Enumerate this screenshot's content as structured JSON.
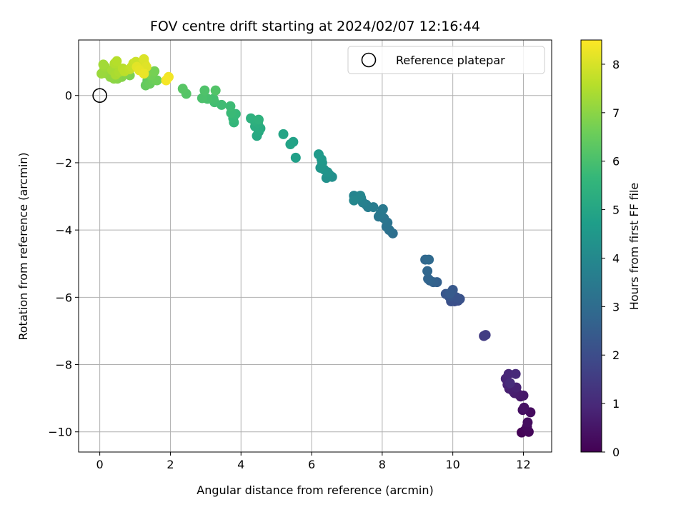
{
  "chart_data": {
    "type": "scatter",
    "title": "FOV centre drift starting at 2024/02/07 12:16:44",
    "xlabel": "Angular distance from reference (arcmin)",
    "ylabel": "Rotation from reference (arcmin)",
    "xlim": [
      -0.6,
      12.8
    ],
    "ylim": [
      -10.6,
      1.65
    ],
    "xticks": [
      0,
      2,
      4,
      6,
      8,
      10,
      12
    ],
    "yticks": [
      0,
      -2,
      -4,
      -6,
      -8,
      -10
    ],
    "xtick_labels": [
      "0",
      "2",
      "4",
      "6",
      "8",
      "10",
      "12"
    ],
    "ytick_labels": [
      "0",
      "−2",
      "−4",
      "−6",
      "−8",
      "−10"
    ],
    "grid": true,
    "legend": {
      "position": "top-right",
      "entries": [
        {
          "label": "Reference platepar",
          "marker": "open-circle"
        }
      ]
    },
    "reference_point": {
      "x": 0,
      "y": 0
    },
    "colorbar": {
      "label": "Hours from first FF file",
      "range": [
        0,
        8.5
      ],
      "ticks": [
        0,
        1,
        2,
        3,
        4,
        5,
        6,
        7,
        8
      ],
      "tick_labels": [
        "0",
        "1",
        "2",
        "3",
        "4",
        "5",
        "6",
        "7",
        "8"
      ],
      "colormap": "viridis"
    },
    "colormap_stops": [
      "#440154",
      "#482878",
      "#3e4989",
      "#31688e",
      "#26828e",
      "#1f9e89",
      "#35b779",
      "#6ece58",
      "#b5de2b",
      "#fde725"
    ],
    "points": [
      [
        11.95,
        -10.02,
        0.05
      ],
      [
        12.05,
        -9.95,
        0.1
      ],
      [
        12.15,
        -10.0,
        0.15
      ],
      [
        12.1,
        -9.85,
        0.2
      ],
      [
        12.2,
        -9.42,
        0.25
      ],
      [
        12.12,
        -9.72,
        0.3
      ],
      [
        11.98,
        -9.35,
        0.35
      ],
      [
        12.02,
        -9.28,
        0.4
      ],
      [
        11.92,
        -8.95,
        0.5
      ],
      [
        12.0,
        -8.92,
        0.55
      ],
      [
        11.85,
        -8.88,
        0.6
      ],
      [
        11.75,
        -8.85,
        0.65
      ],
      [
        11.7,
        -8.78,
        0.7
      ],
      [
        11.6,
        -8.72,
        0.75
      ],
      [
        11.8,
        -8.68,
        0.8
      ],
      [
        11.55,
        -8.6,
        0.85
      ],
      [
        11.5,
        -8.42,
        0.9
      ],
      [
        11.58,
        -8.28,
        0.95
      ],
      [
        11.78,
        -8.28,
        1.0
      ],
      [
        11.62,
        -8.55,
        1.05
      ],
      [
        10.88,
        -7.15,
        1.5
      ],
      [
        10.93,
        -7.12,
        1.55
      ],
      [
        10.05,
        -6.12,
        2.0
      ],
      [
        10.15,
        -6.1,
        2.05
      ],
      [
        9.95,
        -6.12,
        2.1
      ],
      [
        10.2,
        -6.05,
        2.15
      ],
      [
        10.1,
        -6.0,
        2.2
      ],
      [
        9.9,
        -5.98,
        2.25
      ],
      [
        9.8,
        -5.9,
        2.3
      ],
      [
        10.0,
        -5.78,
        2.35
      ],
      [
        9.92,
        -5.88,
        2.4
      ],
      [
        9.55,
        -5.55,
        2.6
      ],
      [
        9.45,
        -5.55,
        2.65
      ],
      [
        9.35,
        -5.5,
        2.7
      ],
      [
        9.3,
        -5.45,
        2.75
      ],
      [
        9.28,
        -5.22,
        2.8
      ],
      [
        9.22,
        -4.88,
        2.85
      ],
      [
        9.32,
        -4.88,
        2.9
      ],
      [
        8.3,
        -4.1,
        3.1
      ],
      [
        8.2,
        -4.0,
        3.15
      ],
      [
        8.12,
        -3.9,
        3.2
      ],
      [
        8.15,
        -3.78,
        3.25
      ],
      [
        8.05,
        -3.65,
        3.3
      ],
      [
        7.9,
        -3.6,
        3.35
      ],
      [
        7.95,
        -3.52,
        3.4
      ],
      [
        8.02,
        -3.38,
        3.45
      ],
      [
        7.75,
        -3.32,
        3.55
      ],
      [
        7.6,
        -3.32,
        3.6
      ],
      [
        7.55,
        -3.25,
        3.65
      ],
      [
        7.45,
        -3.18,
        3.7
      ],
      [
        7.4,
        -3.05,
        3.75
      ],
      [
        7.3,
        -3.02,
        3.8
      ],
      [
        7.2,
        -2.98,
        3.85
      ],
      [
        7.38,
        -2.98,
        3.9
      ],
      [
        7.2,
        -3.12,
        3.95
      ],
      [
        6.58,
        -2.42,
        4.2
      ],
      [
        6.5,
        -2.35,
        4.25
      ],
      [
        6.42,
        -2.45,
        4.3
      ],
      [
        6.45,
        -2.28,
        4.35
      ],
      [
        6.35,
        -2.2,
        4.4
      ],
      [
        6.25,
        -2.15,
        4.45
      ],
      [
        6.3,
        -2.0,
        4.5
      ],
      [
        6.28,
        -1.9,
        4.55
      ],
      [
        6.2,
        -1.75,
        4.6
      ],
      [
        5.55,
        -1.85,
        4.8
      ],
      [
        5.48,
        -1.38,
        4.85
      ],
      [
        5.4,
        -1.45,
        4.9
      ],
      [
        5.2,
        -1.15,
        4.95
      ],
      [
        4.45,
        -1.2,
        5.1
      ],
      [
        4.5,
        -1.08,
        5.15
      ],
      [
        4.55,
        -0.98,
        5.2
      ],
      [
        4.4,
        -0.92,
        5.25
      ],
      [
        4.48,
        -0.82,
        5.3
      ],
      [
        4.38,
        -0.75,
        5.35
      ],
      [
        4.28,
        -0.68,
        5.4
      ],
      [
        4.5,
        -0.72,
        5.45
      ],
      [
        3.8,
        -0.8,
        5.6
      ],
      [
        3.78,
        -0.68,
        5.65
      ],
      [
        3.85,
        -0.55,
        5.7
      ],
      [
        3.72,
        -0.52,
        5.75
      ],
      [
        3.7,
        -0.32,
        5.8
      ],
      [
        3.45,
        -0.28,
        5.85
      ],
      [
        3.25,
        -0.2,
        5.9
      ],
      [
        3.22,
        -0.1,
        5.95
      ],
      [
        3.05,
        -0.1,
        6.0
      ],
      [
        2.9,
        -0.08,
        6.05
      ],
      [
        2.97,
        0.15,
        6.1
      ],
      [
        3.28,
        0.15,
        6.15
      ],
      [
        2.45,
        0.05,
        6.2
      ],
      [
        2.35,
        0.2,
        6.25
      ],
      [
        1.35,
        0.45,
        6.4
      ],
      [
        1.3,
        0.3,
        6.45
      ],
      [
        1.42,
        0.35,
        6.5
      ],
      [
        1.5,
        0.48,
        6.55
      ],
      [
        1.62,
        0.45,
        6.6
      ],
      [
        1.45,
        0.6,
        6.65
      ],
      [
        1.55,
        0.72,
        6.7
      ],
      [
        1.32,
        0.65,
        6.75
      ],
      [
        0.85,
        0.6,
        6.8
      ],
      [
        0.75,
        0.65,
        6.85
      ],
      [
        0.62,
        0.55,
        6.9
      ],
      [
        0.5,
        0.5,
        6.95
      ],
      [
        0.4,
        0.5,
        7.0
      ],
      [
        0.3,
        0.55,
        7.05
      ],
      [
        0.2,
        0.65,
        7.1
      ],
      [
        0.1,
        0.7,
        7.15
      ],
      [
        0.05,
        0.65,
        7.2
      ],
      [
        0.15,
        0.85,
        7.25
      ],
      [
        0.1,
        0.92,
        7.3
      ],
      [
        0.35,
        0.75,
        7.35
      ],
      [
        0.45,
        0.62,
        7.4
      ],
      [
        0.55,
        0.7,
        7.45
      ],
      [
        0.42,
        0.95,
        7.5
      ],
      [
        0.48,
        1.02,
        7.55
      ],
      [
        0.65,
        0.8,
        7.6
      ],
      [
        0.7,
        0.72,
        7.65
      ],
      [
        0.85,
        0.78,
        7.7
      ],
      [
        0.9,
        0.85,
        7.75
      ],
      [
        0.95,
        0.95,
        7.8
      ],
      [
        1.02,
        1.0,
        7.85
      ],
      [
        1.15,
        0.92,
        7.9
      ],
      [
        1.2,
        0.85,
        7.95
      ],
      [
        1.28,
        0.92,
        8.0
      ],
      [
        1.25,
        1.08,
        8.05
      ],
      [
        1.32,
        0.85,
        8.1
      ],
      [
        1.05,
        0.85,
        8.15
      ],
      [
        1.12,
        0.75,
        8.2
      ],
      [
        1.25,
        0.65,
        8.25
      ],
      [
        1.95,
        0.55,
        8.35
      ],
      [
        1.88,
        0.45,
        8.4
      ]
    ]
  }
}
